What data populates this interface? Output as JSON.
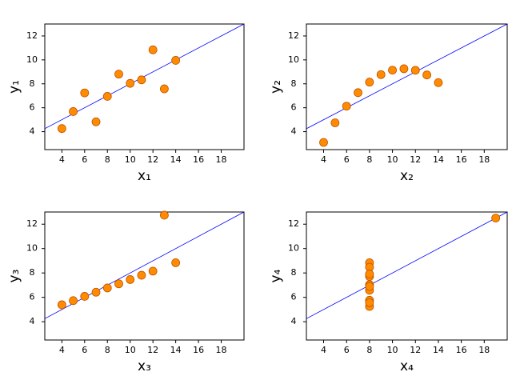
{
  "chart_data": [
    {
      "type": "scatter",
      "xlabel": "x₁",
      "ylabel": "y₁",
      "points": {
        "x": [
          10,
          8,
          13,
          9,
          11,
          14,
          6,
          4,
          12,
          7,
          5
        ],
        "y": [
          8.04,
          6.95,
          7.58,
          8.81,
          8.33,
          9.96,
          7.24,
          4.26,
          10.84,
          4.82,
          5.68
        ],
        "color": "#ff8c00"
      },
      "fit": {
        "x": [
          2.5,
          20
        ],
        "y": [
          4.25,
          13
        ],
        "color": "#0000ff"
      },
      "xlim": [
        2.5,
        20
      ],
      "ylim": [
        2.5,
        13
      ],
      "xticks": [
        4,
        6,
        8,
        10,
        12,
        14,
        16,
        18
      ],
      "yticks": [
        4,
        6,
        8,
        10,
        12
      ]
    },
    {
      "type": "scatter",
      "xlabel": "x₂",
      "ylabel": "y₂",
      "points": {
        "x": [
          10,
          8,
          13,
          9,
          11,
          14,
          6,
          4,
          12,
          7,
          5
        ],
        "y": [
          9.14,
          8.14,
          8.74,
          8.77,
          9.26,
          8.1,
          6.13,
          3.1,
          9.13,
          7.26,
          4.74
        ],
        "color": "#ff8c00"
      },
      "fit": {
        "x": [
          2.5,
          20
        ],
        "y": [
          4.25,
          13
        ],
        "color": "#0000ff"
      },
      "xlim": [
        2.5,
        20
      ],
      "ylim": [
        2.5,
        13
      ],
      "xticks": [
        4,
        6,
        8,
        10,
        12,
        14,
        16,
        18
      ],
      "yticks": [
        4,
        6,
        8,
        10,
        12
      ]
    },
    {
      "type": "scatter",
      "xlabel": "x₃",
      "ylabel": "y₃",
      "points": {
        "x": [
          10,
          8,
          13,
          9,
          11,
          14,
          6,
          4,
          12,
          7,
          5
        ],
        "y": [
          7.46,
          6.77,
          12.74,
          7.11,
          7.81,
          8.84,
          6.08,
          5.39,
          8.15,
          6.42,
          5.73
        ],
        "color": "#ff8c00"
      },
      "fit": {
        "x": [
          2.5,
          20
        ],
        "y": [
          4.25,
          13
        ],
        "color": "#0000ff"
      },
      "xlim": [
        2.5,
        20
      ],
      "ylim": [
        2.5,
        13
      ],
      "xticks": [
        4,
        6,
        8,
        10,
        12,
        14,
        16,
        18
      ],
      "yticks": [
        4,
        6,
        8,
        10,
        12
      ]
    },
    {
      "type": "scatter",
      "xlabel": "x₄",
      "ylabel": "y₄",
      "points": {
        "x": [
          8,
          8,
          8,
          8,
          8,
          8,
          8,
          19,
          8,
          8,
          8
        ],
        "y": [
          6.58,
          5.76,
          7.71,
          8.84,
          8.47,
          7.04,
          5.25,
          12.5,
          5.56,
          7.91,
          6.89
        ],
        "color": "#ff8c00"
      },
      "fit": {
        "x": [
          2.5,
          20
        ],
        "y": [
          4.25,
          13
        ],
        "color": "#0000ff"
      },
      "xlim": [
        2.5,
        20
      ],
      "ylim": [
        2.5,
        13
      ],
      "xticks": [
        4,
        6,
        8,
        10,
        12,
        14,
        16,
        18
      ],
      "yticks": [
        4,
        6,
        8,
        10,
        12
      ]
    }
  ]
}
